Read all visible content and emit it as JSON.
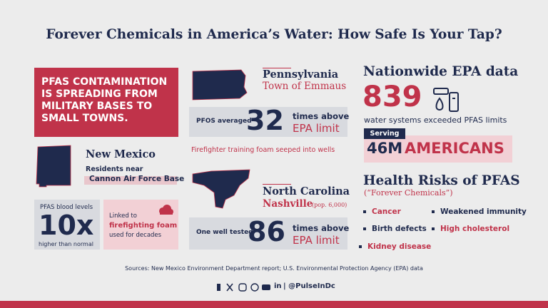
{
  "header": {
    "title": "Forever Chemicals in America’s Water: How Safe Is Your Tap?"
  },
  "headline": "PFAS CONTAMINATION IS SPREADING FROM MILITARY BASES TO SMALL TOWNS.",
  "new_mexico": {
    "state": "New Mexico",
    "subtitle": "Residents near",
    "location": "Cannon Air Force Base",
    "stat_label": "PFAS blood levels",
    "stat_value": "10x",
    "stat_note": "higher than normal",
    "link_prefix": "Linked to",
    "link_cause": "firefighting foam",
    "link_note": "used for decades"
  },
  "pennsylvania": {
    "state": "Pennsylvania",
    "town": "Town of Emmaus",
    "stat_label": "PFOS averaged",
    "stat_value": "32",
    "stat_suffix": "times above",
    "stat_limit": "EPA limit",
    "note": "Firefighter training foam seeped into wells"
  },
  "north_carolina": {
    "state": "North Carolina",
    "town": "Nashville",
    "population": "(pop. 6,000)",
    "stat_label": "One well tested",
    "stat_value": "86",
    "stat_suffix": "times above",
    "stat_limit": "EPA limit"
  },
  "nationwide": {
    "title": "Nationwide EPA data",
    "count": "839",
    "count_note": "water systems exceeded PFAS limits",
    "serving_label": "Serving",
    "serving_number": "46M",
    "serving_unit": "AMERICANS"
  },
  "health": {
    "title": "Health Risks of PFAS",
    "subtitle": "(“Forever Chemicals”)",
    "risks": [
      "Cancer",
      "Weakened immunity",
      "Birth defects",
      "High cholesterol",
      "Kidney disease"
    ]
  },
  "sources": "Sources: New Mexico Environment Department report; U.S. Environmental Protection Agency (EPA) data",
  "footer": {
    "linkedin": "in",
    "handle": "| @PulseInDc"
  }
}
